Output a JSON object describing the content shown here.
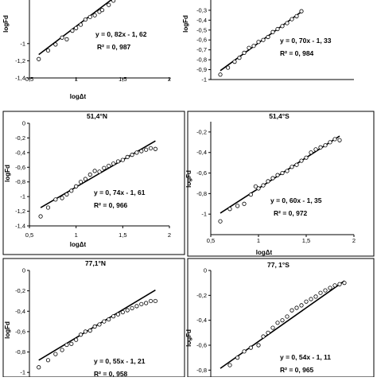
{
  "chart_data": [
    {
      "type": "scatter",
      "title": "",
      "xlabel": "logΔt",
      "ylabel": "logFd",
      "xlim": [
        0.5,
        2
      ],
      "ylim": [
        -1.4,
        -0.4
      ],
      "xticks": [
        "0,5",
        "1",
        "1,5",
        "2"
      ],
      "yticks": [
        "-1",
        "-1,2",
        "-1,4"
      ],
      "equation": "y = 0, 82x - 1, 62",
      "r2": "R² = 0, 987",
      "fit": {
        "slope": 0.82,
        "intercept": -1.62,
        "x_range": [
          0.6,
          1.5
        ]
      },
      "points": [
        [
          0.6,
          -1.18
        ],
        [
          0.7,
          -1.08
        ],
        [
          0.78,
          -1.01
        ],
        [
          0.85,
          -0.93
        ],
        [
          0.9,
          -0.95
        ],
        [
          0.96,
          -0.85
        ],
        [
          1.0,
          -0.82
        ],
        [
          1.05,
          -0.78
        ],
        [
          1.1,
          -0.72
        ],
        [
          1.15,
          -0.69
        ],
        [
          1.2,
          -0.67
        ],
        [
          1.25,
          -0.63
        ],
        [
          1.28,
          -0.61
        ],
        [
          1.35,
          -0.55
        ],
        [
          1.4,
          -0.5
        ],
        [
          1.45,
          -0.43
        ]
      ]
    },
    {
      "type": "scatter",
      "title": "",
      "xlabel": "",
      "ylabel": "logFd",
      "xlim": [
        0.5,
        2
      ],
      "ylim": [
        -1,
        -0.1
      ],
      "xticks": [],
      "yticks": [
        "-0,3",
        "-0,4",
        "-0,5",
        "-0,6",
        "-0,7",
        "-0,8",
        "-0,9",
        "-1"
      ],
      "equation": "y = 0, 70x - 1, 33",
      "r2": "R² = 0, 984",
      "fit": {
        "slope": 0.7,
        "intercept": -1.33,
        "x_range": [
          0.6,
          1.45
        ]
      },
      "points": [
        [
          0.6,
          -0.95
        ],
        [
          0.68,
          -0.88
        ],
        [
          0.75,
          -0.82
        ],
        [
          0.8,
          -0.78
        ],
        [
          0.85,
          -0.73
        ],
        [
          0.9,
          -0.68
        ],
        [
          0.95,
          -0.66
        ],
        [
          1.0,
          -0.62
        ],
        [
          1.05,
          -0.6
        ],
        [
          1.1,
          -0.57
        ],
        [
          1.15,
          -0.52
        ],
        [
          1.2,
          -0.49
        ],
        [
          1.25,
          -0.46
        ],
        [
          1.3,
          -0.43
        ],
        [
          1.35,
          -0.39
        ],
        [
          1.4,
          -0.36
        ],
        [
          1.45,
          -0.31
        ]
      ]
    },
    {
      "type": "scatter",
      "title": "51,4°N",
      "xlabel": "logΔt",
      "ylabel": "logFd",
      "xlim": [
        0.5,
        2
      ],
      "ylim": [
        -1.4,
        0
      ],
      "xticks": [
        "0,5",
        "1",
        "1,5",
        "2"
      ],
      "yticks": [
        "0",
        "-0,2",
        "-0,4",
        "-0,6",
        "-0,8",
        "-1",
        "-1,2",
        "-1,4"
      ],
      "equation": "y = 0, 74x - 1, 61",
      "r2": "R² = 0, 966",
      "fit": {
        "slope": 0.74,
        "intercept": -1.61,
        "x_range": [
          0.62,
          1.85
        ]
      },
      "points": [
        [
          0.62,
          -1.27
        ],
        [
          0.7,
          -1.15
        ],
        [
          0.78,
          -1.04
        ],
        [
          0.85,
          -1.02
        ],
        [
          0.9,
          -0.97
        ],
        [
          0.95,
          -0.92
        ],
        [
          1.0,
          -0.86
        ],
        [
          1.05,
          -0.8
        ],
        [
          1.1,
          -0.76
        ],
        [
          1.15,
          -0.7
        ],
        [
          1.2,
          -0.65
        ],
        [
          1.25,
          -0.66
        ],
        [
          1.3,
          -0.61
        ],
        [
          1.35,
          -0.58
        ],
        [
          1.4,
          -0.55
        ],
        [
          1.45,
          -0.52
        ],
        [
          1.5,
          -0.5
        ],
        [
          1.55,
          -0.46
        ],
        [
          1.6,
          -0.43
        ],
        [
          1.65,
          -0.4
        ],
        [
          1.7,
          -0.38
        ],
        [
          1.75,
          -0.36
        ],
        [
          1.8,
          -0.34
        ],
        [
          1.85,
          -0.35
        ]
      ]
    },
    {
      "type": "scatter",
      "title": "51,4°S",
      "xlabel": "logΔt",
      "ylabel": "logFd",
      "xlim": [
        0.5,
        2
      ],
      "ylim": [
        -1.2,
        -0.1
      ],
      "xticks": [
        "0,5",
        "1",
        "1,5",
        "2"
      ],
      "yticks": [
        "-0,2",
        "-0,4",
        "-0,6",
        "-0,8",
        "-1"
      ],
      "equation": "y = 0, 60x - 1, 35",
      "r2": "R² = 0, 972",
      "fit": {
        "slope": 0.6,
        "intercept": -1.35,
        "x_range": [
          0.6,
          1.85
        ]
      },
      "points": [
        [
          0.6,
          -1.07
        ],
        [
          0.7,
          -0.95
        ],
        [
          0.78,
          -0.92
        ],
        [
          0.85,
          -0.9
        ],
        [
          0.92,
          -0.81
        ],
        [
          0.97,
          -0.73
        ],
        [
          1.0,
          -0.75
        ],
        [
          1.05,
          -0.72
        ],
        [
          1.1,
          -0.68
        ],
        [
          1.15,
          -0.65
        ],
        [
          1.2,
          -0.62
        ],
        [
          1.25,
          -0.6
        ],
        [
          1.3,
          -0.58
        ],
        [
          1.35,
          -0.54
        ],
        [
          1.4,
          -0.52
        ],
        [
          1.45,
          -0.48
        ],
        [
          1.5,
          -0.45
        ],
        [
          1.55,
          -0.4
        ],
        [
          1.6,
          -0.37
        ],
        [
          1.65,
          -0.35
        ],
        [
          1.7,
          -0.33
        ],
        [
          1.75,
          -0.3
        ],
        [
          1.8,
          -0.27
        ],
        [
          1.85,
          -0.28
        ]
      ]
    },
    {
      "type": "scatter",
      "title": "77,1°N",
      "xlabel": "",
      "ylabel": "logFd",
      "xlim": [
        0.5,
        2
      ],
      "ylim": [
        -1.1,
        0
      ],
      "xticks": [],
      "yticks": [
        "0",
        "-0,2",
        "-0,4",
        "-0,6",
        "-0,8",
        "-1"
      ],
      "equation": "y = 0, 55x - 1, 21",
      "r2": "R² = 0, 958",
      "fit": {
        "slope": 0.55,
        "intercept": -1.21,
        "x_range": [
          0.6,
          1.85
        ]
      },
      "points": [
        [
          0.6,
          -0.95
        ],
        [
          0.7,
          -0.88
        ],
        [
          0.78,
          -0.82
        ],
        [
          0.85,
          -0.78
        ],
        [
          0.9,
          -0.73
        ],
        [
          0.95,
          -0.72
        ],
        [
          1.0,
          -0.68
        ],
        [
          1.05,
          -0.63
        ],
        [
          1.1,
          -0.6
        ],
        [
          1.15,
          -0.59
        ],
        [
          1.2,
          -0.55
        ],
        [
          1.25,
          -0.53
        ],
        [
          1.3,
          -0.5
        ],
        [
          1.35,
          -0.48
        ],
        [
          1.4,
          -0.45
        ],
        [
          1.45,
          -0.43
        ],
        [
          1.5,
          -0.41
        ],
        [
          1.55,
          -0.39
        ],
        [
          1.6,
          -0.37
        ],
        [
          1.65,
          -0.35
        ],
        [
          1.7,
          -0.33
        ],
        [
          1.75,
          -0.32
        ],
        [
          1.8,
          -0.3
        ],
        [
          1.85,
          -0.3
        ]
      ]
    },
    {
      "type": "scatter",
      "title": "77, 1°S",
      "xlabel": "",
      "ylabel": "logFd",
      "xlim": [
        0.5,
        2
      ],
      "ylim": [
        -0.9,
        0
      ],
      "xticks": [],
      "yticks": [
        "0",
        "-0,2",
        "-0,4",
        "-0,6",
        "-0,8"
      ],
      "equation": "y = 0, 54x - 1, 11",
      "r2": "R² = 0, 965",
      "fit": {
        "slope": 0.54,
        "intercept": -1.11,
        "x_range": [
          0.6,
          1.9
        ]
      },
      "points": [
        [
          0.6,
          -0.88
        ],
        [
          0.7,
          -0.76
        ],
        [
          0.78,
          -0.7
        ],
        [
          0.85,
          -0.65
        ],
        [
          0.92,
          -0.62
        ],
        [
          1.0,
          -0.6
        ],
        [
          1.05,
          -0.53
        ],
        [
          1.1,
          -0.5
        ],
        [
          1.15,
          -0.46
        ],
        [
          1.2,
          -0.42
        ],
        [
          1.25,
          -0.4
        ],
        [
          1.3,
          -0.37
        ],
        [
          1.35,
          -0.32
        ],
        [
          1.4,
          -0.3
        ],
        [
          1.45,
          -0.28
        ],
        [
          1.5,
          -0.25
        ],
        [
          1.55,
          -0.23
        ],
        [
          1.6,
          -0.21
        ],
        [
          1.65,
          -0.18
        ],
        [
          1.7,
          -0.16
        ],
        [
          1.75,
          -0.14
        ],
        [
          1.8,
          -0.12
        ],
        [
          1.85,
          -0.11
        ],
        [
          1.9,
          -0.1
        ]
      ]
    }
  ]
}
